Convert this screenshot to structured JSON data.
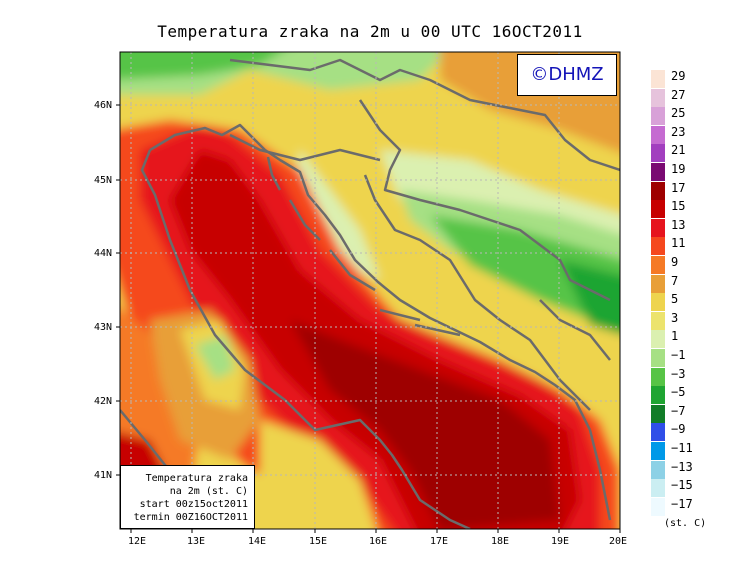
{
  "title": "Temperatura zraka na 2m u 00 UTC 16OCT2011",
  "credit": "©DHMZ",
  "lat_labels": [
    "46N",
    "45N",
    "44N",
    "43N",
    "42N",
    "41N"
  ],
  "lon_labels": [
    "12E",
    "13E",
    "14E",
    "15E",
    "16E",
    "17E",
    "18E",
    "19E",
    "20E"
  ],
  "info": {
    "line1": "Temperatura zraka",
    "line2": "na 2m (st. C)",
    "line3": "start 00z15oct2011",
    "line4": "termin 00Z16OCT2011"
  },
  "legend": {
    "levels": [
      "29",
      "27",
      "25",
      "23",
      "21",
      "19",
      "17",
      "15",
      "13",
      "11",
      "9",
      "7",
      "5",
      "3",
      "1",
      "−1",
      "−3",
      "−5",
      "−7",
      "−9",
      "−11",
      "−13",
      "−15",
      "−17"
    ],
    "colors": [
      "#fbe4d5",
      "#e6c3dc",
      "#d8a1d8",
      "#c56bd1",
      "#a23fbf",
      "#7a0a72",
      "#9e0000",
      "#c70000",
      "#e6141e",
      "#f5481e",
      "#f57a26",
      "#e89f38",
      "#eed44e",
      "#ece36d",
      "#dbf0b0",
      "#a6e084",
      "#57c446",
      "#1fa532",
      "#127d28",
      "#2f4ee8",
      "#0099e8",
      "#8dd1e6",
      "#cbeef2",
      "#eefaff"
    ],
    "unit": "(st. C)"
  }
}
